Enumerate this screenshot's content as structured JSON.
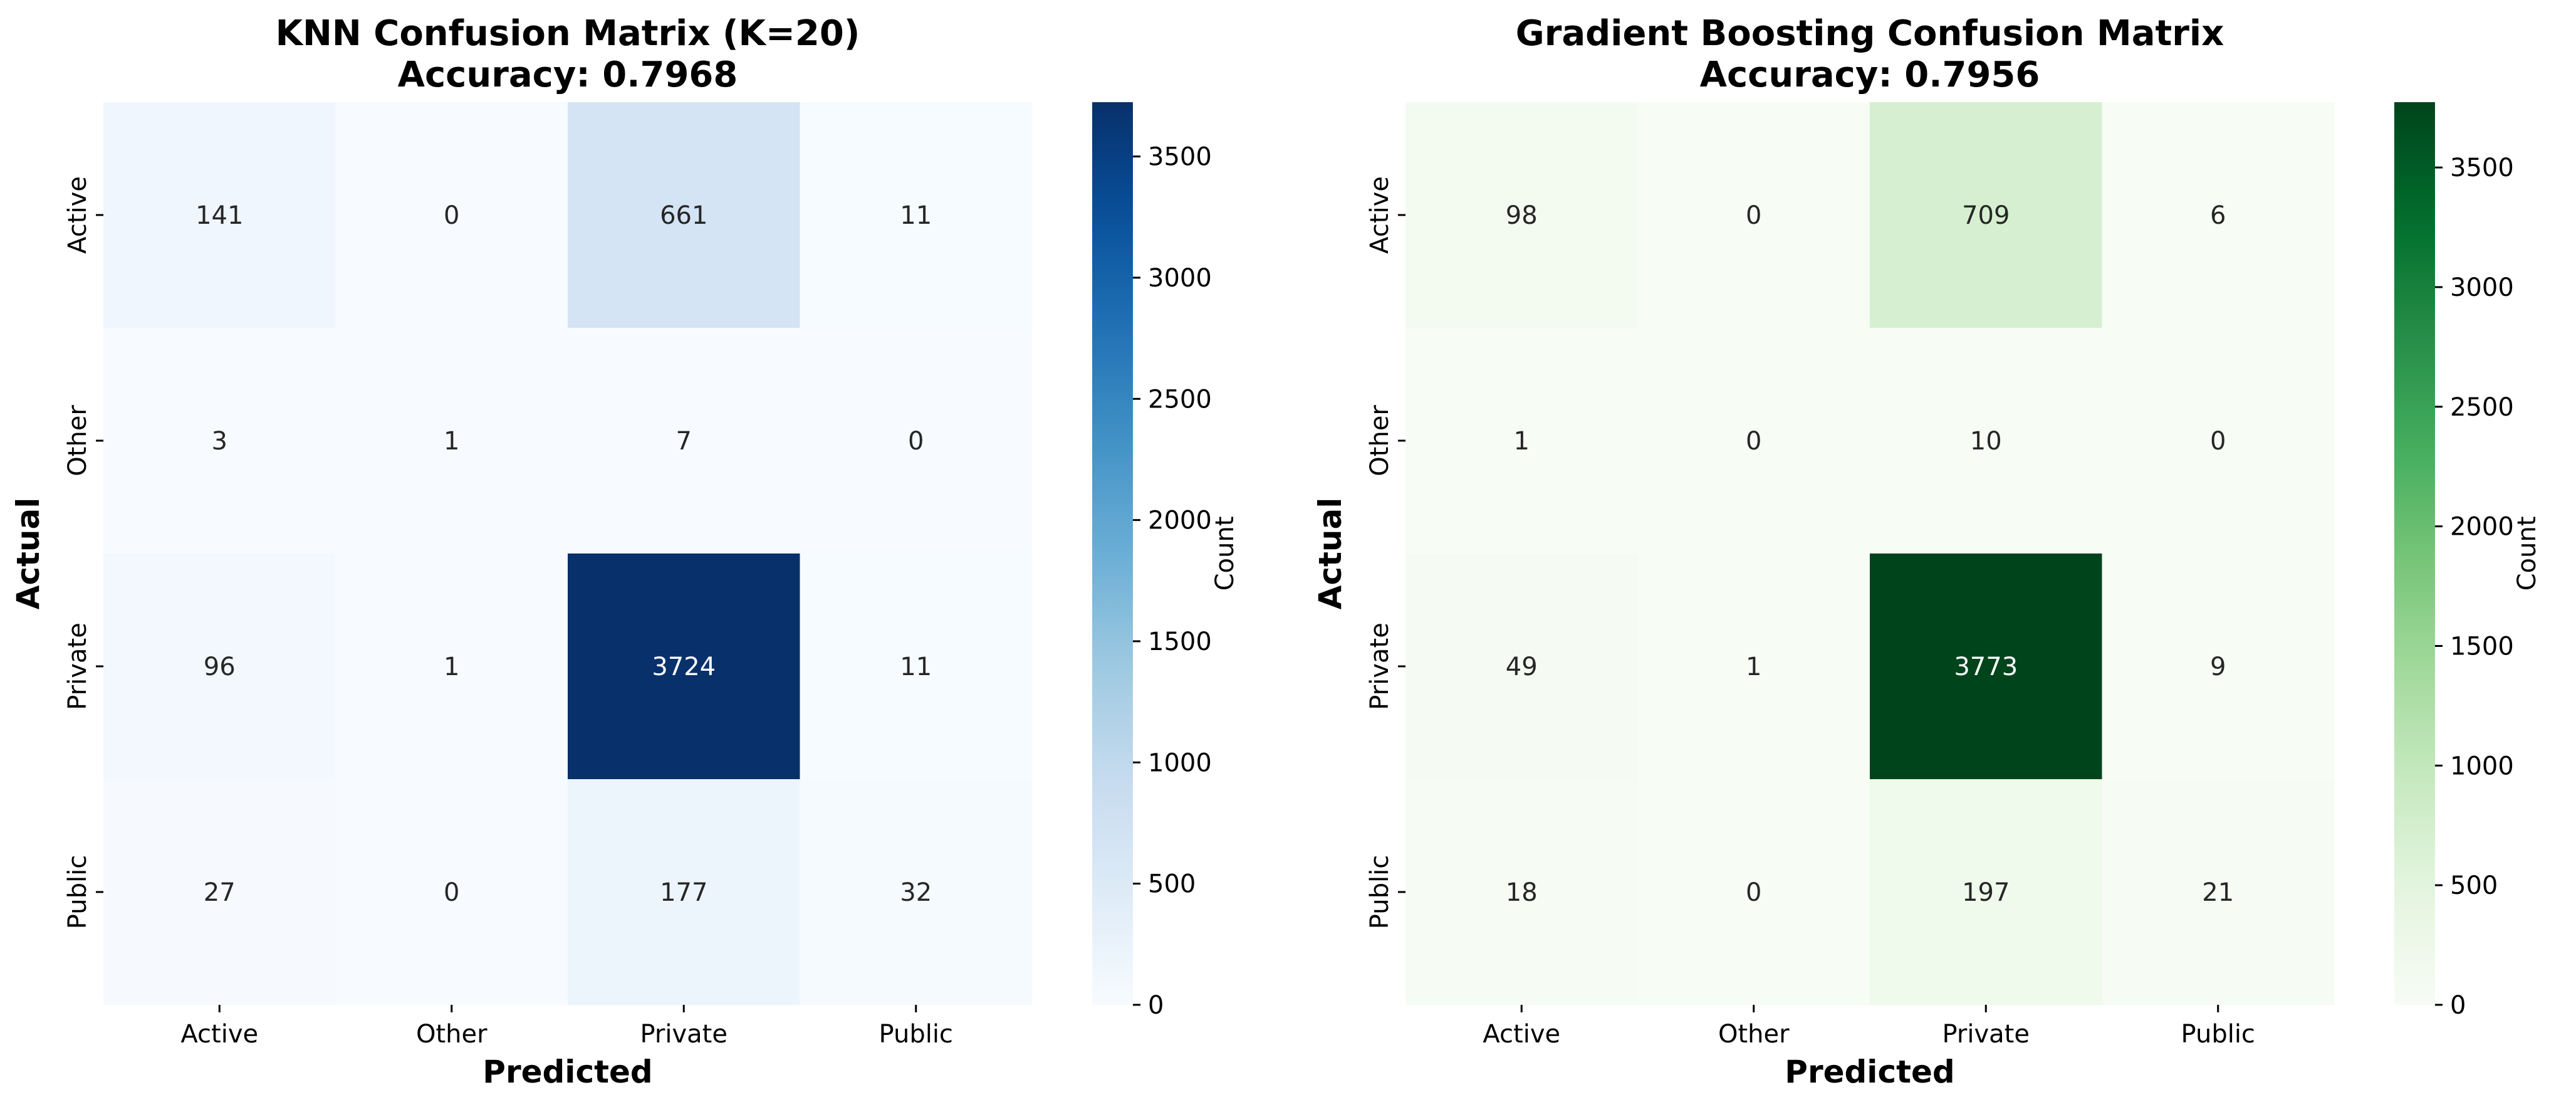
{
  "chart_data": [
    {
      "type": "heatmap",
      "title_line1": "KNN Confusion Matrix (K=20)",
      "title_line2": "Accuracy: 0.7968",
      "xlabel": "Predicted",
      "ylabel": "Actual",
      "x_categories": [
        "Active",
        "Other",
        "Private",
        "Public"
      ],
      "y_categories": [
        "Active",
        "Other",
        "Private",
        "Public"
      ],
      "values": [
        [
          141,
          0,
          661,
          11
        ],
        [
          3,
          1,
          7,
          0
        ],
        [
          96,
          1,
          3724,
          11
        ],
        [
          27,
          0,
          177,
          32
        ]
      ],
      "colormap": "Blues",
      "color_low": "#f7fbff",
      "color_high": "#08306b",
      "colorbar_label": "Count",
      "colorbar_range": [
        0,
        3724
      ],
      "colorbar_ticks": [
        0,
        500,
        1000,
        1500,
        2000,
        2500,
        3000,
        3500
      ]
    },
    {
      "type": "heatmap",
      "title_line1": "Gradient Boosting Confusion Matrix",
      "title_line2": "Accuracy: 0.7956",
      "xlabel": "Predicted",
      "ylabel": "Actual",
      "x_categories": [
        "Active",
        "Other",
        "Private",
        "Public"
      ],
      "y_categories": [
        "Active",
        "Other",
        "Private",
        "Public"
      ],
      "values": [
        [
          98,
          0,
          709,
          6
        ],
        [
          1,
          0,
          10,
          0
        ],
        [
          49,
          1,
          3773,
          9
        ],
        [
          18,
          0,
          197,
          21
        ]
      ],
      "colormap": "Greens",
      "color_low": "#f7fcf5",
      "color_high": "#00441b",
      "colorbar_label": "Count",
      "colorbar_range": [
        0,
        3773
      ],
      "colorbar_ticks": [
        0,
        500,
        1000,
        1500,
        2000,
        2500,
        3000,
        3500
      ]
    }
  ]
}
